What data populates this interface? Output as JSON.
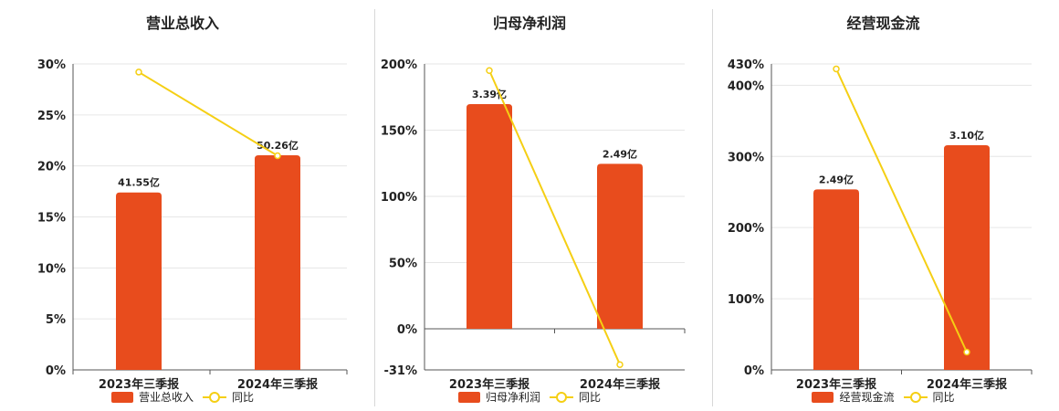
{
  "colors": {
    "bar": "#e84c1d",
    "line": "#f5cf14",
    "grid": "#e6e6e6",
    "axis": "#555555"
  },
  "chart_data": [
    {
      "type": "bar",
      "title": "营业总收入",
      "categories": [
        "2023年三季报",
        "2024年三季报"
      ],
      "bar_values": [
        41.55,
        50.26
      ],
      "bar_labels": [
        "41.55亿",
        "50.26亿"
      ],
      "line_values": [
        29.2,
        21.0
      ],
      "y_ticks": [
        "0%",
        "5%",
        "10%",
        "15%",
        "20%",
        "25%",
        "30%"
      ],
      "ylim": [
        0,
        30
      ],
      "grid": true,
      "legend": {
        "position": "bottom",
        "bar_name": "营业总收入",
        "line_name": "同比"
      }
    },
    {
      "type": "bar",
      "title": "归母净利润",
      "categories": [
        "2023年三季报",
        "2024年三季报"
      ],
      "bar_values": [
        3.39,
        2.49
      ],
      "bar_labels": [
        "3.39亿",
        "2.49亿"
      ],
      "line_values": [
        195,
        -27
      ],
      "y_ticks": [
        "-31%",
        "0%",
        "50%",
        "100%",
        "150%",
        "200%"
      ],
      "ylim": [
        -31,
        200
      ],
      "grid": true,
      "legend": {
        "position": "bottom",
        "bar_name": "归母净利润",
        "line_name": "同比"
      }
    },
    {
      "type": "bar",
      "title": "经营现金流",
      "categories": [
        "2023年三季报",
        "2024年三季报"
      ],
      "bar_values": [
        2.49,
        3.1
      ],
      "bar_labels": [
        "2.49亿",
        "3.10亿"
      ],
      "line_values": [
        423,
        25
      ],
      "y_ticks": [
        "0%",
        "100%",
        "200%",
        "300%",
        "400%",
        "430%"
      ],
      "ylim": [
        0,
        430
      ],
      "grid": true,
      "legend": {
        "position": "bottom",
        "bar_name": "经营现金流",
        "line_name": "同比"
      }
    }
  ]
}
